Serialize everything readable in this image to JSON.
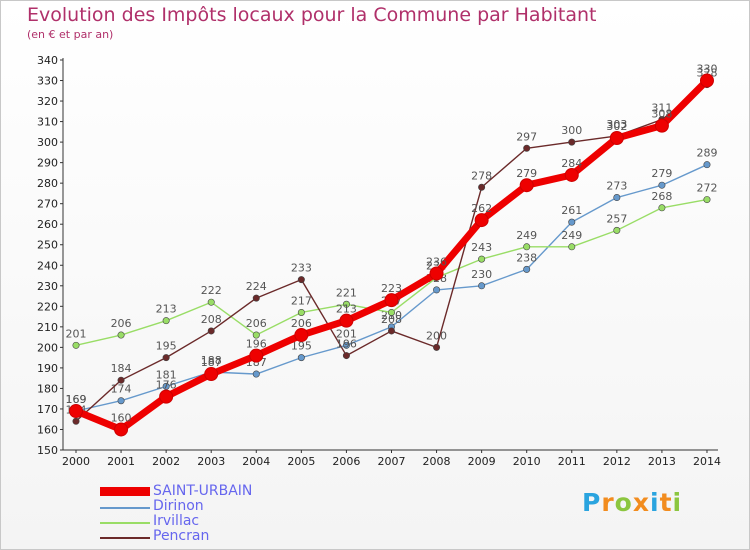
{
  "header": {
    "title": "Evolution des Impôts locaux pour la Commune par Habitant",
    "subtitle": "(en € et par an)"
  },
  "logo": {
    "text": "Proxiti",
    "letters": [
      "P",
      "r",
      "o",
      "x",
      "i",
      "t",
      "i"
    ],
    "colors": [
      "#2aa4df",
      "#f28c1e",
      "#8cc63f",
      "#f28c1e",
      "#2aa4df",
      "#f28c1e",
      "#8cc63f"
    ]
  },
  "chart_data": {
    "type": "line",
    "title": "Evolution des Impôts locaux pour la Commune par Habitant",
    "subtitle": "(en € et par an)",
    "xlabel": "",
    "ylabel": "",
    "categories": [
      "2000",
      "2001",
      "2002",
      "2003",
      "2004",
      "2005",
      "2006",
      "2007",
      "2008",
      "2009",
      "2010",
      "2011",
      "2012",
      "2013",
      "2014"
    ],
    "ylim": [
      150,
      340
    ],
    "yticks": [
      150,
      160,
      170,
      180,
      190,
      200,
      210,
      220,
      230,
      240,
      250,
      260,
      270,
      280,
      290,
      300,
      310,
      320,
      330,
      340
    ],
    "grid": false,
    "legend_position": "bottom-left",
    "series": [
      {
        "name": "SAINT-URBAIN",
        "color": "#ee0000",
        "values": [
          169,
          160,
          176,
          187,
          196,
          206,
          213,
          223,
          236,
          262,
          279,
          284,
          302,
          308,
          330
        ]
      },
      {
        "name": "Dirinon",
        "color": "#6699cc",
        "values": [
          169,
          174,
          181,
          188,
          187,
          195,
          201,
          210,
          228,
          230,
          238,
          261,
          273,
          279,
          289
        ]
      },
      {
        "name": "Irvillac",
        "color": "#99dd66",
        "values": [
          201,
          206,
          213,
          222,
          206,
          217,
          221,
          217,
          234,
          243,
          249,
          249,
          257,
          268,
          272
        ]
      },
      {
        "name": "Pencran",
        "color": "#6b2a2a",
        "values": [
          164,
          184,
          195,
          208,
          224,
          233,
          196,
          208,
          200,
          278,
          297,
          300,
          303,
          311,
          328
        ]
      }
    ]
  }
}
